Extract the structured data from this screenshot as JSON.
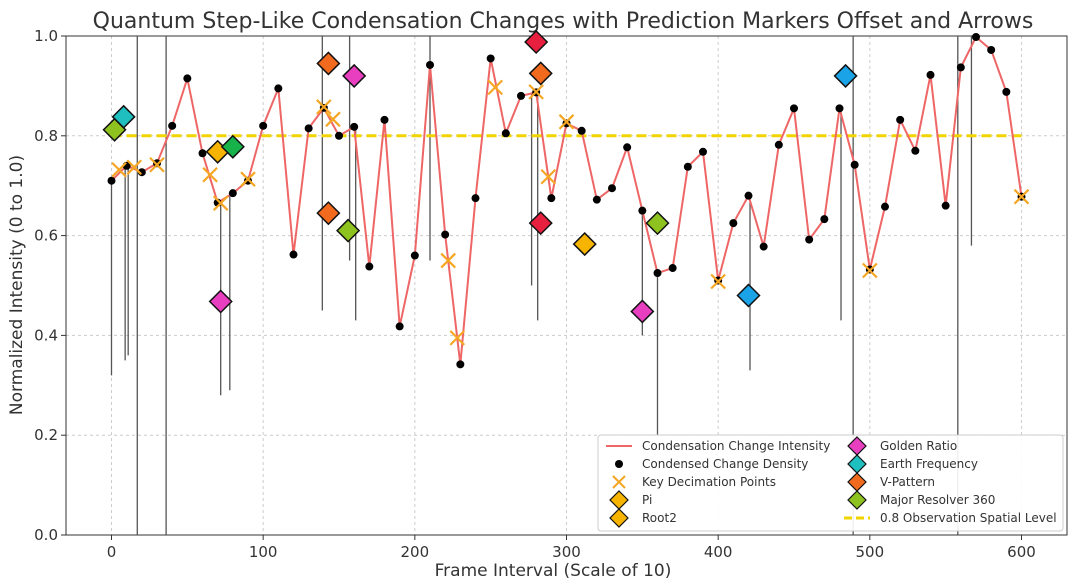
{
  "chart_data": {
    "type": "line",
    "title": "Quantum Step-Like Condensation Changes with Prediction Markers Offset and Arrows",
    "xlabel": "Frame Interval (Scale of 10)",
    "ylabel": "Normalized Intensity (0 to 1.0)",
    "xlim": [
      -30,
      630
    ],
    "ylim": [
      0,
      1.0
    ],
    "xticks": [
      0,
      100,
      200,
      300,
      400,
      500,
      600
    ],
    "yticks": [
      0.0,
      0.2,
      0.4,
      0.6,
      0.8,
      1.0
    ],
    "grid": true,
    "legend_position": "bottom-right",
    "colors": {
      "line": "#ee6666",
      "dots": "#000000",
      "decimation": "#f5a623",
      "reference": "#f2d400",
      "arrows": "#555555"
    },
    "series": [
      {
        "name": "Condensation Change Intensity",
        "kind": "line",
        "x": [
          0,
          10,
          20,
          30,
          40,
          50,
          60,
          70,
          80,
          90,
          100,
          110,
          120,
          130,
          140,
          150,
          160,
          170,
          180,
          190,
          200,
          210,
          220,
          230,
          240,
          250,
          260,
          270,
          280,
          290,
          300,
          310,
          320,
          330,
          340,
          350,
          360,
          370,
          380,
          390,
          400,
          410,
          420,
          430,
          440,
          450,
          460,
          470,
          480,
          490,
          500,
          510,
          520,
          530,
          540,
          550,
          560,
          570,
          580,
          590,
          600
        ],
        "y": [
          0.71,
          0.74,
          0.727,
          0.745,
          0.82,
          0.915,
          0.765,
          0.666,
          0.685,
          0.71,
          0.82,
          0.895,
          0.562,
          0.815,
          0.856,
          0.8,
          0.818,
          0.538,
          0.832,
          0.418,
          0.56,
          0.942,
          0.602,
          0.342,
          0.675,
          0.955,
          0.805,
          0.88,
          0.887,
          0.675,
          0.825,
          0.81,
          0.672,
          0.695,
          0.777,
          0.65,
          0.525,
          0.535,
          0.738,
          0.768,
          0.51,
          0.625,
          0.68,
          0.578,
          0.782,
          0.855,
          0.592,
          0.633,
          0.855,
          0.742,
          0.532,
          0.658,
          0.832,
          0.77,
          0.922,
          0.66,
          0.937,
          0.998,
          0.972,
          0.888,
          0.678
        ]
      },
      {
        "name": "Condensed Change Density",
        "kind": "dots",
        "ref": "same points as line"
      },
      {
        "name": "Key Decimation Points",
        "kind": "x-marker",
        "points": [
          [
            5,
            0.732
          ],
          [
            15,
            0.737
          ],
          [
            30,
            0.742
          ],
          [
            65,
            0.722
          ],
          [
            72,
            0.665
          ],
          [
            90,
            0.713
          ],
          [
            140,
            0.858
          ],
          [
            146,
            0.833
          ],
          [
            222,
            0.55
          ],
          [
            228,
            0.395
          ],
          [
            253,
            0.897
          ],
          [
            280,
            0.888
          ],
          [
            288,
            0.718
          ],
          [
            300,
            0.828
          ],
          [
            400,
            0.508
          ],
          [
            500,
            0.53
          ],
          [
            600,
            0.678
          ]
        ]
      },
      {
        "name": "Pi",
        "kind": "diamond",
        "color": "#f6b400",
        "points": [
          [
            70,
            0.768
          ]
        ]
      },
      {
        "name": "Root2",
        "kind": "diamond",
        "color": "#f6b400",
        "points": [
          [
            312,
            0.583
          ]
        ]
      },
      {
        "name": "Golden Ratio",
        "kind": "diamond",
        "color": "#e83fc0",
        "points": [
          [
            72,
            0.468
          ],
          [
            160,
            0.92
          ],
          [
            350,
            0.448
          ]
        ]
      },
      {
        "name": "Earth Frequency",
        "kind": "diamond",
        "color": "#1fbfbf",
        "points": [
          [
            8,
            0.838
          ]
        ]
      },
      {
        "name": "V-Pattern",
        "kind": "diamond",
        "color": "#f26a1e",
        "points": [
          [
            143,
            0.945
          ],
          [
            143,
            0.645
          ],
          [
            283,
            0.925
          ]
        ]
      },
      {
        "name": "Major Resolver 360",
        "kind": "diamond",
        "color": "#8dc21f",
        "points": [
          [
            2,
            0.812
          ],
          [
            156,
            0.61
          ],
          [
            360,
            0.625
          ]
        ]
      },
      {
        "name": "unlabeled-green",
        "kind": "diamond",
        "color": "#17b24a",
        "points": [
          [
            80,
            0.778
          ]
        ]
      },
      {
        "name": "unlabeled-red",
        "kind": "diamond",
        "color": "#e8203f",
        "points": [
          [
            280,
            0.988
          ],
          [
            283,
            0.625
          ]
        ]
      },
      {
        "name": "unlabeled-blue",
        "kind": "diamond",
        "color": "#1aa3e6",
        "points": [
          [
            420,
            0.48
          ],
          [
            484,
            0.92
          ]
        ]
      },
      {
        "name": "0.8 Observation Spatial Level",
        "kind": "hline",
        "y": 0.8,
        "x_range": [
          0,
          600
        ]
      }
    ],
    "arrows": [
      [
        0,
        0.32,
        0.71
      ],
      [
        9,
        0.35,
        0.74
      ],
      [
        11,
        0.36,
        0.74
      ],
      [
        17,
        0.0,
        1.0
      ],
      [
        36,
        0.0,
        1.0
      ],
      [
        72,
        0.28,
        0.666
      ],
      [
        78,
        0.29,
        0.685
      ],
      [
        139,
        0.45,
        1.0
      ],
      [
        157,
        0.55,
        1.0
      ],
      [
        161,
        0.43,
        0.818
      ],
      [
        210,
        0.55,
        1.0
      ],
      [
        277,
        0.5,
        0.887
      ],
      [
        281,
        0.43,
        0.887
      ],
      [
        350,
        0.4,
        0.65
      ],
      [
        360,
        0.2,
        0.525
      ],
      [
        421,
        0.33,
        0.68
      ],
      [
        481,
        0.43,
        0.855
      ],
      [
        489,
        0.0,
        1.0
      ],
      [
        558,
        0.0,
        1.0
      ],
      [
        567,
        0.58,
        1.0
      ]
    ],
    "legend": [
      {
        "label": "Condensation Change Intensity",
        "symbol": "line",
        "color": "#ee6666"
      },
      {
        "label": "Condensed Change Density",
        "symbol": "dot",
        "color": "#000000"
      },
      {
        "label": "Key Decimation Points",
        "symbol": "x",
        "color": "#f5a623"
      },
      {
        "label": "Pi",
        "symbol": "diamond",
        "color": "#f6b400"
      },
      {
        "label": "Root2",
        "symbol": "diamond",
        "color": "#f6b400"
      },
      {
        "label": "Golden Ratio",
        "symbol": "diamond",
        "color": "#e83fc0"
      },
      {
        "label": "Earth Frequency",
        "symbol": "diamond",
        "color": "#1fbfbf"
      },
      {
        "label": "V-Pattern",
        "symbol": "diamond",
        "color": "#f26a1e"
      },
      {
        "label": "Major Resolver 360",
        "symbol": "diamond",
        "color": "#8dc21f"
      },
      {
        "label": "0.8 Observation Spatial Level",
        "symbol": "dash",
        "color": "#f2d400"
      }
    ]
  }
}
